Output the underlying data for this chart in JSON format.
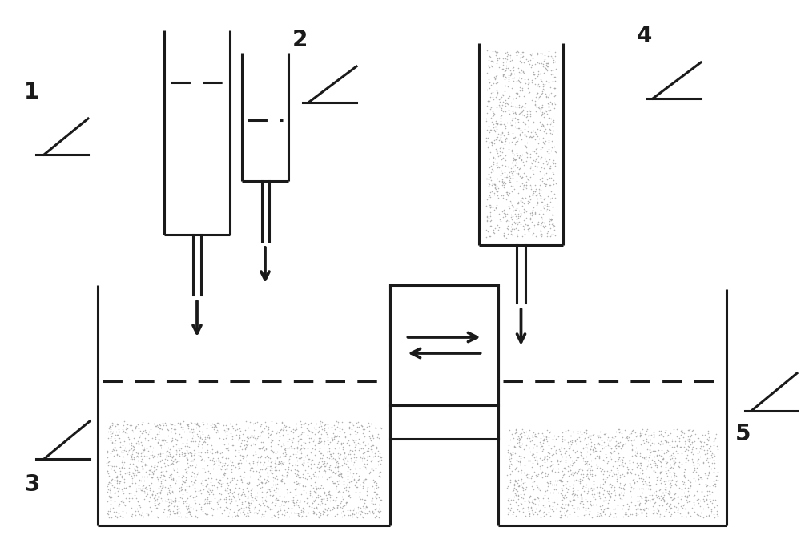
{
  "bg_color": "#ffffff",
  "line_color": "#1a1a1a",
  "line_width": 2.2,
  "label_fontsize": 20,
  "gravel_color": "#aaaaaa",
  "gravel_dot_size": 1.2
}
